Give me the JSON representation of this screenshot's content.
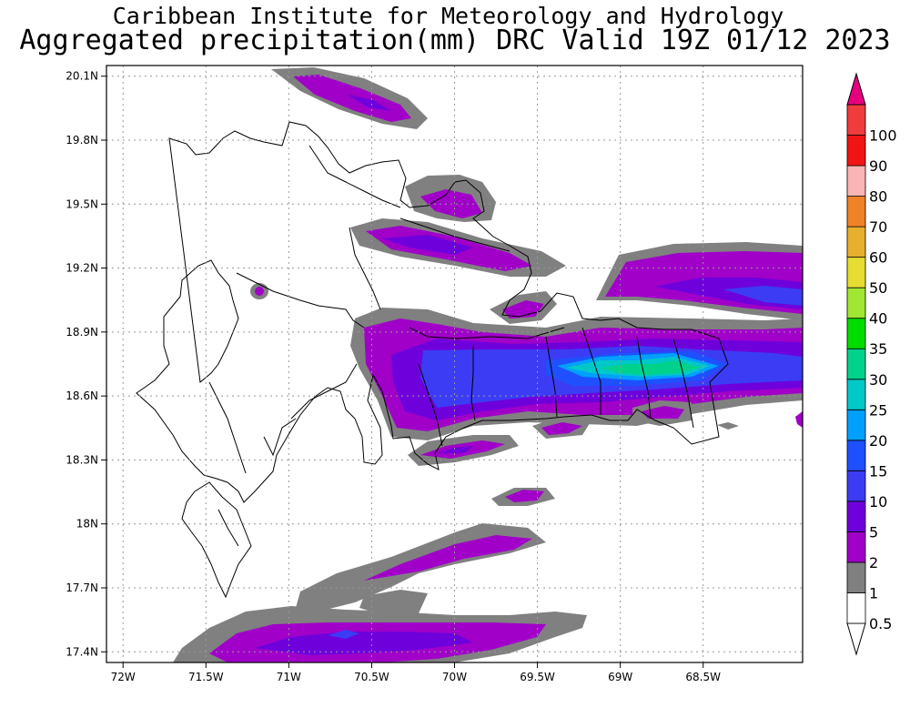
{
  "title": {
    "line1": "Caribbean Institute for Meteorology and Hydrology",
    "line2": "Aggregated precipitation(mm) DRC Valid 19Z 01/12 2023"
  },
  "map": {
    "lon_range": [
      -72.1,
      -67.9
    ],
    "lat_range": [
      17.35,
      20.15
    ],
    "x_ticks": [
      {
        "lon": -72.0,
        "label": "72W"
      },
      {
        "lon": -71.5,
        "label": "71.5W"
      },
      {
        "lon": -71.0,
        "label": "71W"
      },
      {
        "lon": -70.5,
        "label": "70.5W"
      },
      {
        "lon": -70.0,
        "label": "70W"
      },
      {
        "lon": -69.5,
        "label": "69.5W"
      },
      {
        "lon": -69.0,
        "label": "69W"
      },
      {
        "lon": -68.5,
        "label": "68.5W"
      }
    ],
    "y_ticks": [
      {
        "lat": 20.1,
        "label": "20.1N"
      },
      {
        "lat": 19.8,
        "label": "19.8N"
      },
      {
        "lat": 19.5,
        "label": "19.5N"
      },
      {
        "lat": 19.2,
        "label": "19.2N"
      },
      {
        "lat": 18.9,
        "label": "18.9N"
      },
      {
        "lat": 18.6,
        "label": "18.6N"
      },
      {
        "lat": 18.3,
        "label": "18.3N"
      },
      {
        "lat": 18.0,
        "label": "18N"
      },
      {
        "lat": 17.7,
        "label": "17.7N"
      },
      {
        "lat": 17.4,
        "label": "17.4N"
      }
    ],
    "grid": true
  },
  "colorbar": {
    "levels": [
      {
        "label": "0.5",
        "color": "#ffffff"
      },
      {
        "label": "1",
        "color": "#808080"
      },
      {
        "label": "2",
        "color": "#a000c8"
      },
      {
        "label": "5",
        "color": "#6e00dc"
      },
      {
        "label": "10",
        "color": "#3c3cf5"
      },
      {
        "label": "15",
        "color": "#1e50ff"
      },
      {
        "label": "20",
        "color": "#00a0ff"
      },
      {
        "label": "25",
        "color": "#00c8c8"
      },
      {
        "label": "30",
        "color": "#00d28c"
      },
      {
        "label": "35",
        "color": "#00dc00"
      },
      {
        "label": "40",
        "color": "#a0e632"
      },
      {
        "label": "50",
        "color": "#e6dc32"
      },
      {
        "label": "60",
        "color": "#e6af2d"
      },
      {
        "label": "70",
        "color": "#f08228"
      },
      {
        "label": "80",
        "color": "#fab4b4"
      },
      {
        "label": "90",
        "color": "#f01414"
      },
      {
        "label": "100",
        "color": "#f03c3c"
      }
    ],
    "overflow_color": "#e6007f"
  }
}
